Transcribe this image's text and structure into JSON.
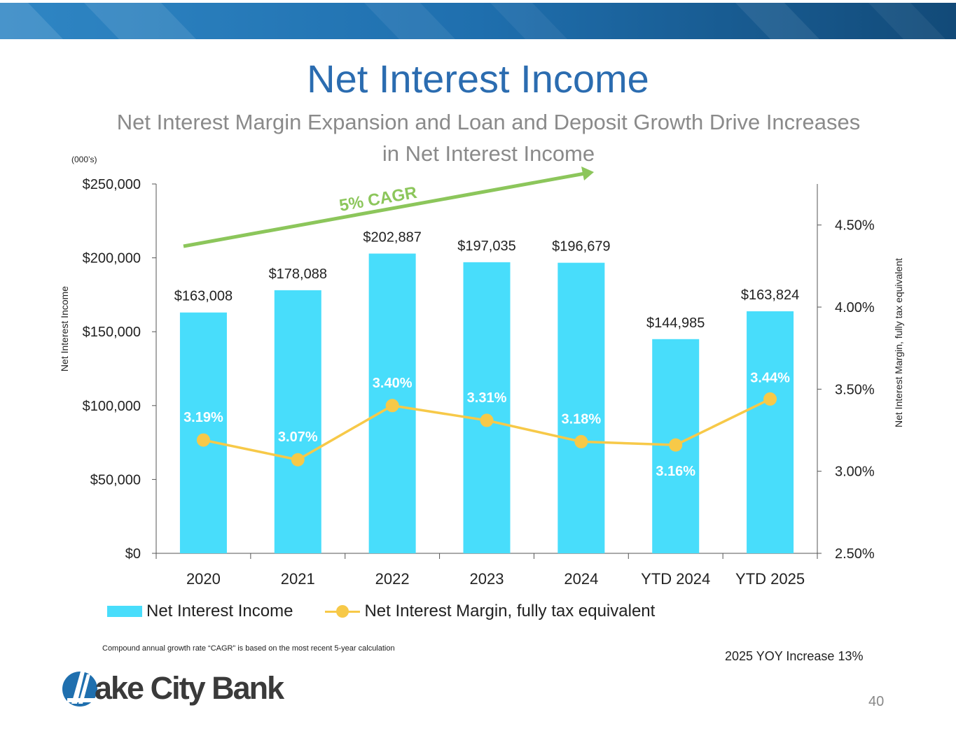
{
  "slide": {
    "title": "Net Interest Income",
    "subtitle_line1": "Net Interest Margin Expansion and Loan and Deposit Growth Drive Increases",
    "subtitle_line2": "in Net Interest Income",
    "units_note": "(000’s)",
    "cagr_label": "5% CAGR",
    "footnote": "Compound annual growth rate “CAGR” is based on the most recent 5-year calculation",
    "yoy_note": "2025 YOY Increase 13%",
    "logo_text": "ake City Bank",
    "page_number": "40"
  },
  "colors": {
    "bar": "#48ddfb",
    "line": "#f7c948",
    "cagr": "#8cc65b",
    "title": "#2b6cb0",
    "subtitle": "#8a8a8a",
    "axis": "#555555"
  },
  "legend": {
    "bar_label": "Net Interest Income",
    "line_label": "Net Interest Margin, fully tax equivalent"
  },
  "chart_data": {
    "type": "bar+line",
    "categories": [
      "2020",
      "2021",
      "2022",
      "2023",
      "2024",
      "YTD 2024",
      "YTD 2025"
    ],
    "series": [
      {
        "name": "Net Interest Income",
        "type": "bar",
        "axis": "left",
        "values": [
          163008,
          178088,
          202887,
          197035,
          196679,
          144985,
          163824
        ],
        "labels": [
          "$163,008",
          "$178,088",
          "$202,887",
          "$197,035",
          "$196,679",
          "$144,985",
          "$163,824"
        ]
      },
      {
        "name": "Net Interest Margin, fully tax equivalent",
        "type": "line",
        "axis": "right",
        "values": [
          3.19,
          3.07,
          3.4,
          3.31,
          3.18,
          3.16,
          3.44
        ],
        "labels": [
          "3.19%",
          "3.07%",
          "3.40%",
          "3.31%",
          "3.18%",
          "3.16%",
          "3.44%"
        ]
      }
    ],
    "ylabel": "Net Interest Income",
    "y2label": "Net Interest Margin, fully tax equivalent",
    "ylim": [
      0,
      250000
    ],
    "y2lim": [
      2.5,
      4.75
    ],
    "yticks": [
      "$0",
      "$50,000",
      "$100,000",
      "$150,000",
      "$200,000",
      "$250,000"
    ],
    "yticks_values": [
      0,
      50000,
      100000,
      150000,
      200000,
      250000
    ],
    "y2ticks": [
      "2.50%",
      "3.00%",
      "3.50%",
      "4.00%",
      "4.50%"
    ],
    "y2ticks_values": [
      2.5,
      3.0,
      3.5,
      4.0,
      4.5
    ],
    "annotation": "5% CAGR",
    "legend_position": "bottom"
  }
}
